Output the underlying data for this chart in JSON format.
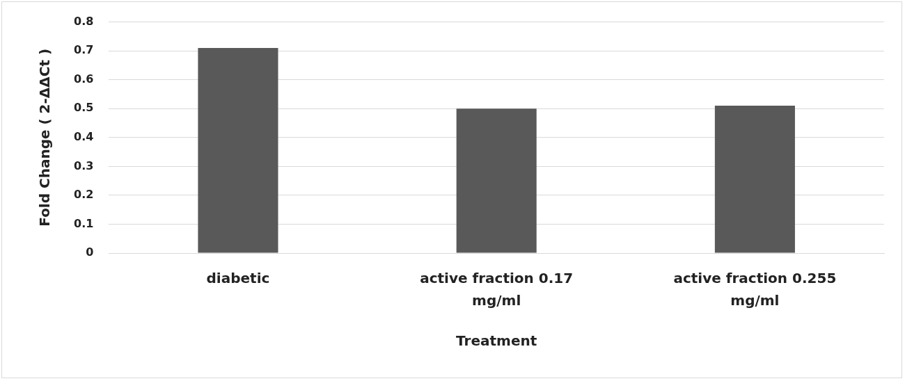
{
  "chart_data": {
    "type": "bar",
    "xlabel": "Treatment",
    "ylabel": "Fold Change ( 2-ΔΔCt )",
    "categories": [
      "diabetic",
      "active fraction 0.17 mg/ml",
      "active fraction 0.255 mg/ml"
    ],
    "values": [
      0.71,
      0.5,
      0.51
    ],
    "color": "#595959",
    "ylim": [
      0,
      0.8
    ],
    "yticks": [
      0,
      0.1,
      0.2,
      0.3,
      0.4,
      0.5,
      0.6,
      0.7,
      0.8
    ],
    "grid": "y",
    "legend": false
  }
}
